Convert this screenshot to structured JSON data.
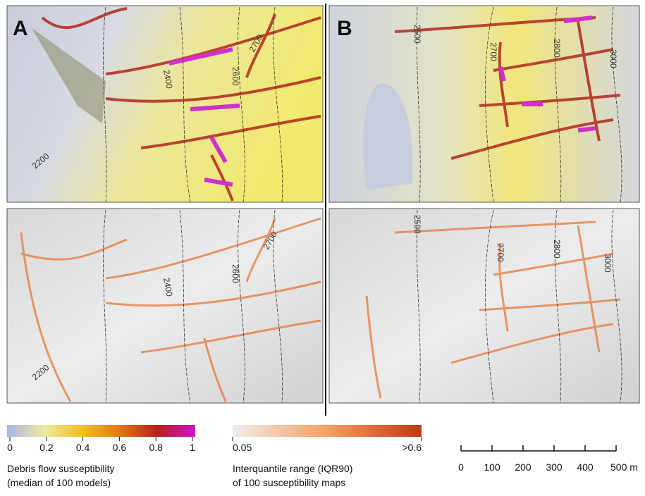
{
  "maps": [
    {
      "label": "A",
      "top_contours": [
        "2200",
        "2400",
        "2600",
        "2700"
      ],
      "bottom_contours": [
        "2200",
        "2400",
        "2600",
        "2700"
      ]
    },
    {
      "label": "B",
      "top_contours": [
        "2500",
        "2700",
        "2800",
        "3000"
      ],
      "bottom_contours": [
        "2500",
        "2700",
        "2800",
        "3000"
      ]
    }
  ],
  "legends": {
    "susceptibility": {
      "ticks": [
        "0",
        "0.2",
        "0.4",
        "0.6",
        "0.8",
        "1"
      ],
      "title": [
        "Debris flow susceptibility",
        "(median of 100 models)"
      ]
    },
    "iqr": {
      "ticks": [
        "0.05",
        ">0.6"
      ],
      "title": [
        "Interquantile range (IQR90)",
        "of 100 susceptibility maps"
      ]
    }
  },
  "scale_bar": {
    "labels": [
      "0",
      "100",
      "200",
      "300",
      "400",
      "500 m"
    ]
  }
}
